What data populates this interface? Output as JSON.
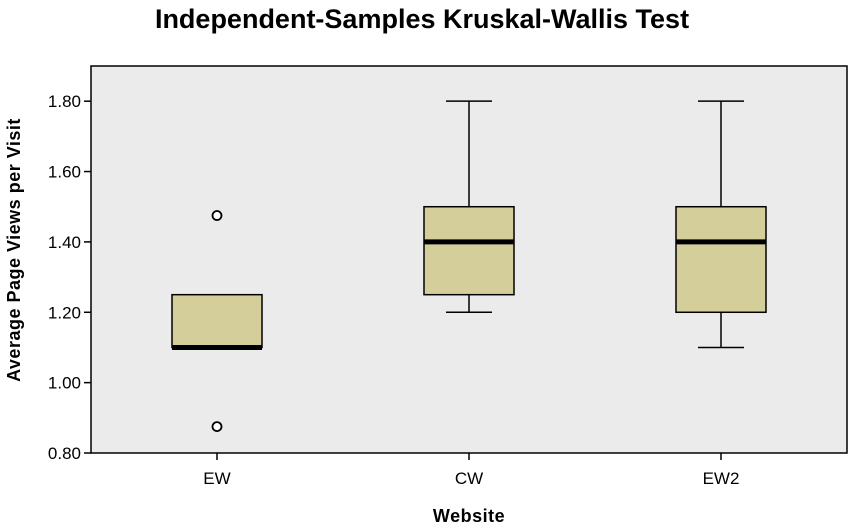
{
  "chart_data": {
    "type": "boxplot",
    "title": "Independent-Samples Kruskal-Wallis Test",
    "xlabel": "Website",
    "ylabel": "Average Page Views per Visit",
    "ylim": [
      0.8,
      1.9
    ],
    "yticks": [
      "0.80",
      "1.00",
      "1.20",
      "1.40",
      "1.60",
      "1.80"
    ],
    "categories": [
      "EW",
      "CW",
      "EW2"
    ],
    "boxes": [
      {
        "category": "EW",
        "whisker_low": 1.1,
        "q1": 1.1,
        "median": 1.1,
        "q3": 1.25,
        "whisker_high": 1.25,
        "outliers": [
          0.875,
          1.475
        ]
      },
      {
        "category": "CW",
        "whisker_low": 1.2,
        "q1": 1.25,
        "median": 1.4,
        "q3": 1.5,
        "whisker_high": 1.8,
        "outliers": []
      },
      {
        "category": "EW2",
        "whisker_low": 1.1,
        "q1": 1.2,
        "median": 1.4,
        "q3": 1.5,
        "whisker_high": 1.8,
        "outliers": []
      }
    ],
    "grid": false,
    "colors": {
      "plot_bg": "#ebebeb",
      "box_fill": "#d4cf9a",
      "stroke": "#000000"
    }
  }
}
